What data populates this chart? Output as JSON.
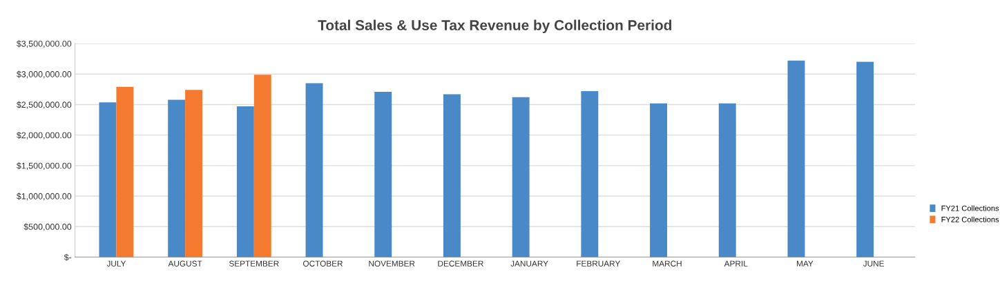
{
  "chart_data": {
    "type": "bar",
    "title": "Total Sales & Use Tax Revenue by Collection Period",
    "categories": [
      "JULY",
      "AUGUST",
      "SEPTEMBER",
      "OCTOBER",
      "NOVEMBER",
      "DECEMBER",
      "JANUARY",
      "FEBRUARY",
      "MARCH",
      "APRIL",
      "MAY",
      "JUNE"
    ],
    "series": [
      {
        "name": "FY21 Collections",
        "color": "#4a89c8",
        "values": [
          2535000,
          2580000,
          2470000,
          2850000,
          2710000,
          2670000,
          2620000,
          2720000,
          2520000,
          2520000,
          3220000,
          3200000
        ]
      },
      {
        "name": "FY22 Collections",
        "color": "#f47a30",
        "values": [
          2790000,
          2740000,
          2990000,
          null,
          null,
          null,
          null,
          null,
          null,
          null,
          null,
          null
        ]
      }
    ],
    "ylim": [
      0,
      3500000
    ],
    "yticks": [
      {
        "value": 0,
        "label": "$-"
      },
      {
        "value": 500000,
        "label": "$500,000.00"
      },
      {
        "value": 1000000,
        "label": "$1,000,000.00"
      },
      {
        "value": 1500000,
        "label": "$1,500,000.00"
      },
      {
        "value": 2000000,
        "label": "$2,000,000.00"
      },
      {
        "value": 2500000,
        "label": "$2,500,000.00"
      },
      {
        "value": 3000000,
        "label": "$3,000,000.00"
      },
      {
        "value": 3500000,
        "label": "$3,500,000.00"
      }
    ],
    "grid": "y",
    "legend": "right"
  }
}
